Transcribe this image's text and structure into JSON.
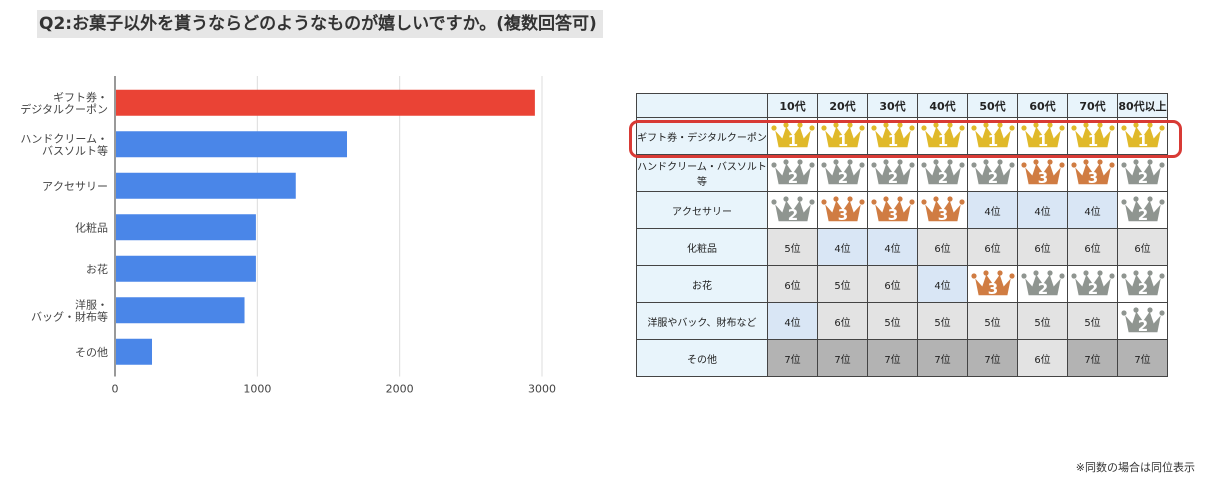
{
  "title": "Q2:お菓子以外を貰うならどのようなものが嬉しいですか。(複数回答可)",
  "chart_data": {
    "type": "bar",
    "orientation": "horizontal",
    "categories": [
      [
        "ギフト券・",
        "デジタルクーポン"
      ],
      [
        "ハンドクリーム・",
        "バスソルト等"
      ],
      [
        "アクセサリー"
      ],
      [
        "化粧品"
      ],
      [
        "お花"
      ],
      [
        "洋服・",
        "バッグ・財布等"
      ],
      [
        "その他"
      ]
    ],
    "values": [
      2950,
      1630,
      1270,
      990,
      990,
      910,
      260
    ],
    "xlim": [
      0,
      3000
    ],
    "xticks": [
      "0",
      "1000",
      "2000",
      "3000"
    ],
    "grid": true,
    "colors": {
      "highlight": "#ea4335",
      "default": "#4a86e8"
    }
  },
  "table": {
    "columns": [
      "10代",
      "20代",
      "30代",
      "40代",
      "50代",
      "60代",
      "70代",
      "80代以上"
    ],
    "rows": [
      {
        "label": "ギフト券・デジタルクーポン",
        "cells": [
          {
            "rank": "1",
            "type": "crown"
          },
          {
            "rank": "1",
            "type": "crown"
          },
          {
            "rank": "1",
            "type": "crown"
          },
          {
            "rank": "1",
            "type": "crown"
          },
          {
            "rank": "1",
            "type": "crown"
          },
          {
            "rank": "1",
            "type": "crown"
          },
          {
            "rank": "1",
            "type": "crown"
          },
          {
            "rank": "1",
            "type": "crown"
          }
        ]
      },
      {
        "label": "ハンドクリーム・バスソルト等",
        "cells": [
          {
            "rank": "2",
            "type": "crown"
          },
          {
            "rank": "2",
            "type": "crown"
          },
          {
            "rank": "2",
            "type": "crown"
          },
          {
            "rank": "2",
            "type": "crown"
          },
          {
            "rank": "2",
            "type": "crown"
          },
          {
            "rank": "3",
            "type": "crown"
          },
          {
            "rank": "3",
            "type": "crown"
          },
          {
            "rank": "2",
            "type": "crown"
          }
        ]
      },
      {
        "label": "アクセサリー",
        "cells": [
          {
            "rank": "2",
            "type": "crown"
          },
          {
            "rank": "3",
            "type": "crown"
          },
          {
            "rank": "3",
            "type": "crown"
          },
          {
            "rank": "3",
            "type": "crown"
          },
          {
            "text": "4位",
            "type": "text",
            "bg": "light"
          },
          {
            "text": "4位",
            "type": "text",
            "bg": "light"
          },
          {
            "text": "4位",
            "type": "text",
            "bg": "light"
          },
          {
            "rank": "2",
            "type": "crown"
          }
        ]
      },
      {
        "label": "化粧品",
        "cells": [
          {
            "text": "5位",
            "type": "text",
            "bg": "gray"
          },
          {
            "text": "4位",
            "type": "text",
            "bg": "light"
          },
          {
            "text": "4位",
            "type": "text",
            "bg": "light"
          },
          {
            "text": "6位",
            "type": "text",
            "bg": "gray"
          },
          {
            "text": "6位",
            "type": "text",
            "bg": "gray"
          },
          {
            "text": "6位",
            "type": "text",
            "bg": "gray"
          },
          {
            "text": "6位",
            "type": "text",
            "bg": "gray"
          },
          {
            "text": "6位",
            "type": "text",
            "bg": "gray"
          }
        ]
      },
      {
        "label": "お花",
        "cells": [
          {
            "text": "6位",
            "type": "text",
            "bg": "gray"
          },
          {
            "text": "5位",
            "type": "text",
            "bg": "gray"
          },
          {
            "text": "6位",
            "type": "text",
            "bg": "gray"
          },
          {
            "text": "4位",
            "type": "text",
            "bg": "light"
          },
          {
            "rank": "3",
            "type": "crown"
          },
          {
            "rank": "2",
            "type": "crown"
          },
          {
            "rank": "2",
            "type": "crown"
          },
          {
            "rank": "2",
            "type": "crown"
          }
        ]
      },
      {
        "label": "洋服やバック、財布など",
        "cells": [
          {
            "text": "4位",
            "type": "text",
            "bg": "light"
          },
          {
            "text": "6位",
            "type": "text",
            "bg": "gray"
          },
          {
            "text": "5位",
            "type": "text",
            "bg": "gray"
          },
          {
            "text": "5位",
            "type": "text",
            "bg": "gray"
          },
          {
            "text": "5位",
            "type": "text",
            "bg": "gray"
          },
          {
            "text": "5位",
            "type": "text",
            "bg": "gray"
          },
          {
            "text": "5位",
            "type": "text",
            "bg": "gray"
          },
          {
            "rank": "2",
            "type": "crown"
          }
        ]
      },
      {
        "label": "その他",
        "cells": [
          {
            "text": "7位",
            "type": "text",
            "bg": "dark"
          },
          {
            "text": "7位",
            "type": "text",
            "bg": "dark"
          },
          {
            "text": "7位",
            "type": "text",
            "bg": "dark"
          },
          {
            "text": "7位",
            "type": "text",
            "bg": "dark"
          },
          {
            "text": "7位",
            "type": "text",
            "bg": "dark"
          },
          {
            "text": "6位",
            "type": "text",
            "bg": "gray"
          },
          {
            "text": "7位",
            "type": "text",
            "bg": "dark"
          },
          {
            "text": "7位",
            "type": "text",
            "bg": "dark"
          }
        ]
      }
    ],
    "crown_colors": {
      "1": "#e0b92a",
      "2": "#8f9590",
      "3": "#d07c42"
    },
    "highlighted_row": "ギフト券・デジタルクーポン"
  },
  "footnote": "※同数の場合は同位表示"
}
